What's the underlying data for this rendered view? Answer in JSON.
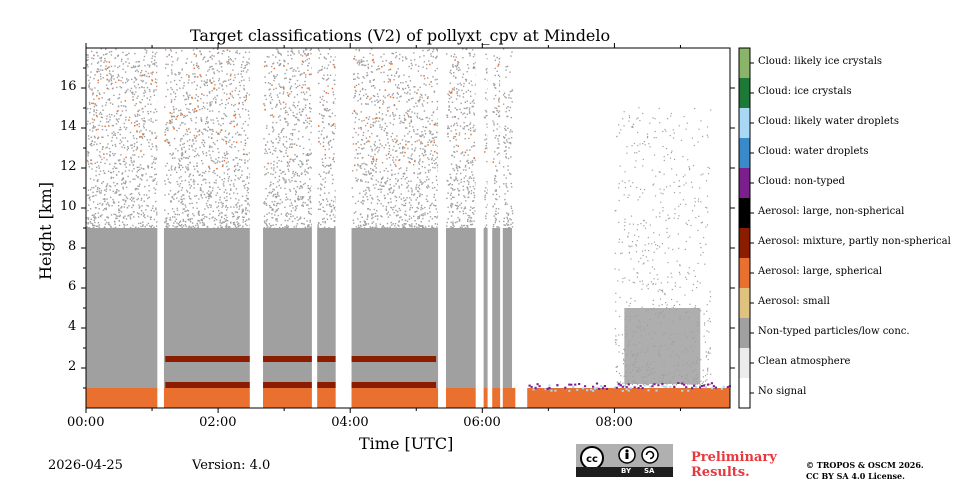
{
  "chart_data": {
    "type": "heatmap",
    "title": "Target classifications (V2) of pollyxt_cpv at Mindelo",
    "xlabel": "Time [UTC]",
    "ylabel": "Height [km]",
    "x_unit": "hours UTC",
    "xlim": [
      0,
      9.75
    ],
    "ylim": [
      0,
      18
    ],
    "x_ticks": [
      0,
      2,
      4,
      6,
      8
    ],
    "x_tick_labels": [
      "00:00",
      "02:00",
      "04:00",
      "06:00",
      "08:00"
    ],
    "y_ticks": [
      2,
      4,
      6,
      8,
      10,
      12,
      14,
      16
    ],
    "y_tick_labels": [
      "2",
      "4",
      "6",
      "8",
      "10",
      "12",
      "14",
      "16"
    ],
    "colorbar": [
      {
        "label": "No signal",
        "color": "#ffffff"
      },
      {
        "label": "Clean atmosphere",
        "color": "#ececec"
      },
      {
        "label": "Non-typed particles/low conc.",
        "color": "#a0a0a0"
      },
      {
        "label": "Aerosol: small",
        "color": "#dfc27d"
      },
      {
        "label": "Aerosol: large, spherical",
        "color": "#e9702f"
      },
      {
        "label": "Aerosol: mixture, partly non-spherical",
        "color": "#8c1c00"
      },
      {
        "label": "Aerosol: large, non-spherical",
        "color": "#000000"
      },
      {
        "label": "Cloud: non-typed",
        "color": "#7b1f8c"
      },
      {
        "label": "Cloud: water droplets",
        "color": "#3a8acb"
      },
      {
        "label": "Cloud: likely water droplets",
        "color": "#a8d8f5"
      },
      {
        "label": "Cloud: ice crystals",
        "color": "#1c7a36"
      },
      {
        "label": "Cloud: likely ice crystals",
        "color": "#8ab467"
      }
    ],
    "data_gaps_hours": [
      [
        1.08,
        1.18
      ],
      [
        2.48,
        2.68
      ],
      [
        3.42,
        3.5
      ],
      [
        3.78,
        4.02
      ],
      [
        5.33,
        5.45
      ],
      [
        5.9,
        6.02
      ],
      [
        6.08,
        6.15
      ],
      [
        6.27,
        6.31
      ],
      [
        6.5,
        6.68
      ]
    ],
    "layers": [
      {
        "class": "Aerosol: large, spherical",
        "t_start": 0,
        "t_end": 9.75,
        "z_bottom_km": 0.0,
        "z_top_km": 1.0
      },
      {
        "class": "Aerosol: mixture, partly non-spherical",
        "t_start": 1.2,
        "t_end": 5.3,
        "z_bottom_km": 1.0,
        "z_top_km": 1.3
      },
      {
        "class": "Aerosol: mixture, partly non-spherical",
        "t_start": 1.2,
        "t_end": 5.3,
        "z_bottom_km": 2.3,
        "z_top_km": 2.6
      },
      {
        "class": "Non-typed particles/low conc.",
        "t_start": 0,
        "t_end": 6.45,
        "z_bottom_km": 1.0,
        "z_top_km": 9.0
      },
      {
        "class": "Non-typed particles/low conc.",
        "t_start": 0,
        "t_end": 6.45,
        "z_bottom_km": 9.0,
        "z_top_km": 18.0,
        "coverage": "sparse"
      },
      {
        "class": "Non-typed particles/low conc.",
        "t_start": 8.15,
        "t_end": 9.3,
        "z_bottom_km": 1.2,
        "z_top_km": 5.0
      },
      {
        "class": "Cloud: likely water droplets",
        "t_start": 6.7,
        "t_end": 9.75,
        "z_bottom_km": 0.9,
        "z_top_km": 1.2,
        "coverage": "patchy"
      },
      {
        "class": "Cloud: non-typed",
        "t_start": 6.7,
        "t_end": 9.75,
        "z_bottom_km": 1.0,
        "z_top_km": 1.3,
        "coverage": "patchy"
      }
    ]
  },
  "footer": {
    "date": "2026-04-25",
    "version": "Version: 4.0",
    "license_badge": {
      "by": "BY",
      "sa": "SA"
    },
    "preliminary_line1": "Preliminary",
    "preliminary_line2": "Results.",
    "copyright_line1": "© TROPOS & OSCM 2026.",
    "copyright_line2": "CC BY SA 4.0 License."
  }
}
